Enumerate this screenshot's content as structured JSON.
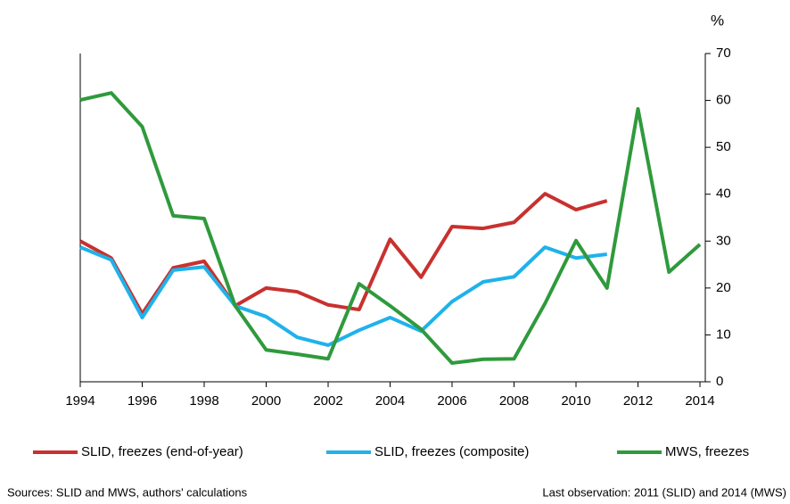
{
  "chart_data": {
    "type": "line",
    "y_unit": "%",
    "x": [
      1994,
      1995,
      1996,
      1997,
      1998,
      1999,
      2000,
      2001,
      2002,
      2003,
      2004,
      2005,
      2006,
      2007,
      2008,
      2009,
      2010,
      2011,
      2012,
      2013,
      2014
    ],
    "xlim": [
      1994,
      2014
    ],
    "xticks": [
      1994,
      1996,
      1998,
      2000,
      2002,
      2004,
      2006,
      2008,
      2010,
      2012,
      2014
    ],
    "ylim": [
      0,
      70
    ],
    "yticks": [
      0,
      10,
      20,
      30,
      40,
      50,
      60,
      70
    ],
    "y_axis_side": "right",
    "grid": false,
    "legend": "bottom",
    "series": [
      {
        "name": "SLID, freezes (end-of-year)",
        "color": "#c8312e",
        "values": [
          30,
          26.4,
          14.5,
          24.3,
          25.7,
          16.2,
          20,
          19.2,
          16.4,
          15.4,
          30.4,
          22.3,
          33.1,
          32.7,
          34,
          40.1,
          36.7,
          38.6,
          null,
          null,
          null
        ]
      },
      {
        "name": "SLID, freezes (composite)",
        "color": "#1fb2ea",
        "values": [
          28.7,
          26,
          13.7,
          23.8,
          24.5,
          16.2,
          13.9,
          9.5,
          7.8,
          11,
          13.7,
          10.8,
          17.1,
          21.3,
          22.4,
          28.7,
          26.4,
          27.2,
          null,
          null,
          null
        ]
      },
      {
        "name": "MWS, freezes",
        "color": "#2f9a3c",
        "values": [
          60.1,
          61.6,
          54.4,
          35.4,
          34.8,
          16.2,
          6.8,
          5.9,
          4.9,
          20.9,
          16.2,
          11.2,
          4,
          4.8,
          4.9,
          16.7,
          30.1,
          20,
          58.2,
          23.4,
          29.3
        ]
      }
    ],
    "source_note": "Sources: SLID and MWS, authors' calculations",
    "last_observation_note": "Last observation: 2011 (SLID) and 2014 (MWS)"
  }
}
